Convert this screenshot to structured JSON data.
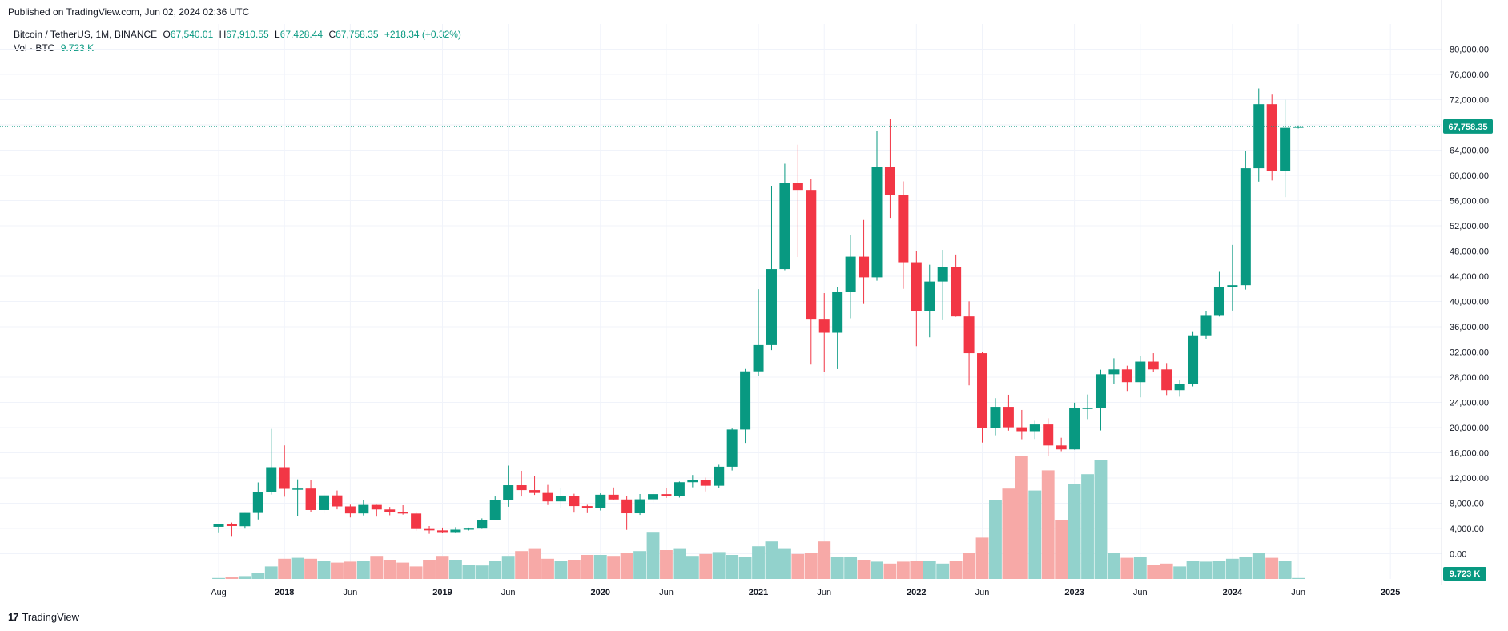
{
  "header": {
    "published": "Published on TradingView.com, Jun 02, 2024 02:36 UTC"
  },
  "legend": {
    "symbol": "Bitcoin / TetherUS, 1M, BINANCE",
    "o_label": "O",
    "o_value": "67,540.01",
    "h_label": "H",
    "h_value": "67,910.55",
    "l_label": "L",
    "l_value": "67,428.44",
    "c_label": "C",
    "c_value": "67,758.35",
    "change": "+218.34 (+0.32%)",
    "vol_label": "Vol · BTC",
    "vol_value": "9.723 K"
  },
  "price_tag": "67,758.35",
  "volume_tag": "9.723 K",
  "footer": {
    "brand": "TradingView",
    "logo_glyph": "17"
  },
  "colors": {
    "up": "#089981",
    "down": "#f23645",
    "up_vol": "#92d2cc",
    "down_vol": "#f7a9a7",
    "grid": "#f0f3fa"
  },
  "chart_data": {
    "type": "candlestick",
    "y_axis": {
      "ticks": [
        "80,000.00",
        "76,000.00",
        "72,000.00",
        "68,000.00",
        "64,000.00",
        "60,000.00",
        "56,000.00",
        "52,000.00",
        "48,000.00",
        "44,000.00",
        "40,000.00",
        "36,000.00",
        "32,000.00",
        "28,000.00",
        "24,000.00",
        "20,000.00",
        "16,000.00",
        "12,000.00",
        "8,000.00",
        "4,000.00",
        "0.00"
      ],
      "tick_values": [
        80000,
        76000,
        72000,
        68000,
        64000,
        60000,
        56000,
        52000,
        48000,
        44000,
        40000,
        36000,
        32000,
        28000,
        24000,
        20000,
        16000,
        12000,
        8000,
        4000,
        0
      ],
      "range": [
        -4000,
        84000
      ]
    },
    "x_axis": {
      "labels": [
        "Aug",
        "2018",
        "Jun",
        "2019",
        "Jun",
        "2020",
        "Jun",
        "2021",
        "Jun",
        "2022",
        "Jun",
        "2023",
        "Jun",
        "2024",
        "Jun",
        "2025"
      ],
      "label_months": [
        "2017-08",
        "2018-01",
        "2018-06",
        "2019-01",
        "2019-06",
        "2020-01",
        "2020-06",
        "2021-01",
        "2021-06",
        "2022-01",
        "2022-06",
        "2023-01",
        "2023-06",
        "2024-01",
        "2024-06",
        "2025-01"
      ]
    },
    "volume_label": "Vol · BTC",
    "last_close": 67758.35,
    "candles": [
      {
        "month": "2017-08",
        "o": 4261,
        "h": 4745,
        "l": 3400,
        "c": 4724,
        "v": 0.05
      },
      {
        "month": "2017-09",
        "o": 4690,
        "h": 4939,
        "l": 2817,
        "c": 4379,
        "v": 0.1
      },
      {
        "month": "2017-10",
        "o": 4353,
        "h": 6447,
        "l": 4098,
        "c": 6463,
        "v": 0.15
      },
      {
        "month": "2017-11",
        "o": 6463,
        "h": 11300,
        "l": 5426,
        "c": 9838,
        "v": 0.3
      },
      {
        "month": "2017-12",
        "o": 9838,
        "h": 19798,
        "l": 9380,
        "c": 13716,
        "v": 0.65
      },
      {
        "month": "2018-01",
        "o": 13716,
        "h": 17176,
        "l": 9035,
        "c": 10285,
        "v": 1.05
      },
      {
        "month": "2018-02",
        "o": 10285,
        "h": 11786,
        "l": 6000,
        "c": 10326,
        "v": 1.1
      },
      {
        "month": "2018-03",
        "o": 10326,
        "h": 11700,
        "l": 6600,
        "c": 6923,
        "v": 1.05
      },
      {
        "month": "2018-04",
        "o": 6923,
        "h": 9759,
        "l": 6425,
        "c": 9246,
        "v": 0.95
      },
      {
        "month": "2018-05",
        "o": 9246,
        "h": 10020,
        "l": 7032,
        "c": 7494,
        "v": 0.85
      },
      {
        "month": "2018-06",
        "o": 7494,
        "h": 7770,
        "l": 5750,
        "c": 6391,
        "v": 0.9
      },
      {
        "month": "2018-07",
        "o": 6391,
        "h": 8507,
        "l": 6070,
        "c": 7730,
        "v": 0.95
      },
      {
        "month": "2018-08",
        "o": 7730,
        "h": 7760,
        "l": 5880,
        "c": 7011,
        "v": 1.2
      },
      {
        "month": "2018-09",
        "o": 7011,
        "h": 7410,
        "l": 6100,
        "c": 6626,
        "v": 1.0
      },
      {
        "month": "2018-10",
        "o": 6626,
        "h": 7680,
        "l": 6200,
        "c": 6371,
        "v": 0.85
      },
      {
        "month": "2018-11",
        "o": 6371,
        "h": 6500,
        "l": 3652,
        "c": 4041,
        "v": 0.65
      },
      {
        "month": "2018-12",
        "o": 4041,
        "h": 4380,
        "l": 3156,
        "c": 3702,
        "v": 1.0
      },
      {
        "month": "2019-01",
        "o": 3702,
        "h": 4143,
        "l": 3349,
        "c": 3434,
        "v": 1.2
      },
      {
        "month": "2019-02",
        "o": 3434,
        "h": 4210,
        "l": 3373,
        "c": 3813,
        "v": 1.0
      },
      {
        "month": "2019-03",
        "o": 3813,
        "h": 4140,
        "l": 3689,
        "c": 4105,
        "v": 0.75
      },
      {
        "month": "2019-04",
        "o": 4105,
        "h": 5600,
        "l": 4050,
        "c": 5350,
        "v": 0.7
      },
      {
        "month": "2019-05",
        "o": 5350,
        "h": 9074,
        "l": 5330,
        "c": 8555,
        "v": 0.95
      },
      {
        "month": "2019-06",
        "o": 8555,
        "h": 13970,
        "l": 7440,
        "c": 10854,
        "v": 1.2
      },
      {
        "month": "2019-07",
        "o": 10854,
        "h": 13147,
        "l": 9071,
        "c": 10085,
        "v": 1.45
      },
      {
        "month": "2019-08",
        "o": 10085,
        "h": 12325,
        "l": 9320,
        "c": 9630,
        "v": 1.6
      },
      {
        "month": "2019-09",
        "o": 9630,
        "h": 10905,
        "l": 7710,
        "c": 8294,
        "v": 1.05
      },
      {
        "month": "2019-10",
        "o": 8294,
        "h": 10370,
        "l": 7300,
        "c": 9199,
        "v": 0.95
      },
      {
        "month": "2019-11",
        "o": 9199,
        "h": 9505,
        "l": 6515,
        "c": 7546,
        "v": 1.0
      },
      {
        "month": "2019-12",
        "o": 7546,
        "h": 7750,
        "l": 6435,
        "c": 7195,
        "v": 1.25
      },
      {
        "month": "2020-01",
        "o": 7195,
        "h": 9578,
        "l": 6850,
        "c": 9350,
        "v": 1.25
      },
      {
        "month": "2020-02",
        "o": 9350,
        "h": 10500,
        "l": 8450,
        "c": 8599,
        "v": 1.2
      },
      {
        "month": "2020-03",
        "o": 8599,
        "h": 9188,
        "l": 3782,
        "c": 6410,
        "v": 1.35
      },
      {
        "month": "2020-04",
        "o": 6410,
        "h": 9460,
        "l": 6150,
        "c": 8624,
        "v": 1.45
      },
      {
        "month": "2020-05",
        "o": 8624,
        "h": 10067,
        "l": 8117,
        "c": 9446,
        "v": 2.45
      },
      {
        "month": "2020-06",
        "o": 9446,
        "h": 10380,
        "l": 8833,
        "c": 9137,
        "v": 1.5
      },
      {
        "month": "2020-07",
        "o": 9137,
        "h": 11444,
        "l": 8893,
        "c": 11335,
        "v": 1.6
      },
      {
        "month": "2020-08",
        "o": 11335,
        "h": 12486,
        "l": 10525,
        "c": 11649,
        "v": 1.2
      },
      {
        "month": "2020-09",
        "o": 11649,
        "h": 12067,
        "l": 9875,
        "c": 10776,
        "v": 1.3
      },
      {
        "month": "2020-10",
        "o": 10776,
        "h": 14100,
        "l": 10375,
        "c": 13791,
        "v": 1.4
      },
      {
        "month": "2020-11",
        "o": 13791,
        "h": 19863,
        "l": 13195,
        "c": 19695,
        "v": 1.25
      },
      {
        "month": "2020-12",
        "o": 19695,
        "h": 29300,
        "l": 17572,
        "c": 28923,
        "v": 1.15
      },
      {
        "month": "2021-01",
        "o": 28923,
        "h": 41950,
        "l": 28130,
        "c": 33092,
        "v": 1.7
      },
      {
        "month": "2021-02",
        "o": 33092,
        "h": 58352,
        "l": 32296,
        "c": 45135,
        "v": 1.95
      },
      {
        "month": "2021-03",
        "o": 45135,
        "h": 61844,
        "l": 44950,
        "c": 58740,
        "v": 1.6
      },
      {
        "month": "2021-04",
        "o": 58740,
        "h": 64854,
        "l": 47044,
        "c": 57694,
        "v": 1.3
      },
      {
        "month": "2021-05",
        "o": 57694,
        "h": 59500,
        "l": 30000,
        "c": 37253,
        "v": 1.35
      },
      {
        "month": "2021-06",
        "o": 37253,
        "h": 41330,
        "l": 28805,
        "c": 35045,
        "v": 1.95
      },
      {
        "month": "2021-07",
        "o": 35045,
        "h": 42316,
        "l": 29278,
        "c": 41461,
        "v": 1.15
      },
      {
        "month": "2021-08",
        "o": 41461,
        "h": 50500,
        "l": 37332,
        "c": 47100,
        "v": 1.15
      },
      {
        "month": "2021-09",
        "o": 47100,
        "h": 52920,
        "l": 39600,
        "c": 43824,
        "v": 1.0
      },
      {
        "month": "2021-10",
        "o": 43824,
        "h": 67000,
        "l": 43283,
        "c": 61299,
        "v": 0.9
      },
      {
        "month": "2021-11",
        "o": 61299,
        "h": 69000,
        "l": 53256,
        "c": 56950,
        "v": 0.8
      },
      {
        "month": "2021-12",
        "o": 56950,
        "h": 59053,
        "l": 42000,
        "c": 46216,
        "v": 0.9
      },
      {
        "month": "2022-01",
        "o": 46216,
        "h": 47990,
        "l": 32917,
        "c": 38466,
        "v": 0.95
      },
      {
        "month": "2022-02",
        "o": 38466,
        "h": 45821,
        "l": 34322,
        "c": 43160,
        "v": 0.95
      },
      {
        "month": "2022-03",
        "o": 43160,
        "h": 48189,
        "l": 37155,
        "c": 45510,
        "v": 0.8
      },
      {
        "month": "2022-04",
        "o": 45510,
        "h": 47444,
        "l": 37578,
        "c": 37630,
        "v": 0.95
      },
      {
        "month": "2022-05",
        "o": 37630,
        "h": 40023,
        "l": 26700,
        "c": 31801,
        "v": 1.35
      },
      {
        "month": "2022-06",
        "o": 31801,
        "h": 31982,
        "l": 17622,
        "c": 19942,
        "v": 2.15
      },
      {
        "month": "2022-07",
        "o": 19942,
        "h": 24668,
        "l": 18781,
        "c": 23293,
        "v": 4.1
      },
      {
        "month": "2022-08",
        "o": 23293,
        "h": 25212,
        "l": 19520,
        "c": 20050,
        "v": 4.7
      },
      {
        "month": "2022-09",
        "o": 20050,
        "h": 22799,
        "l": 18153,
        "c": 19431,
        "v": 6.4
      },
      {
        "month": "2022-10",
        "o": 19431,
        "h": 21085,
        "l": 18190,
        "c": 20495,
        "v": 4.6
      },
      {
        "month": "2022-11",
        "o": 20495,
        "h": 21480,
        "l": 15476,
        "c": 17164,
        "v": 5.65
      },
      {
        "month": "2022-12",
        "o": 17164,
        "h": 18387,
        "l": 16256,
        "c": 16542,
        "v": 3.05
      },
      {
        "month": "2023-01",
        "o": 16542,
        "h": 23960,
        "l": 16499,
        "c": 23125,
        "v": 4.95
      },
      {
        "month": "2023-02",
        "o": 23125,
        "h": 25250,
        "l": 21351,
        "c": 23141,
        "v": 5.45
      },
      {
        "month": "2023-03",
        "o": 23141,
        "h": 29184,
        "l": 19549,
        "c": 28465,
        "v": 6.2
      },
      {
        "month": "2023-04",
        "o": 28465,
        "h": 31000,
        "l": 26942,
        "c": 29233,
        "v": 1.35
      },
      {
        "month": "2023-05",
        "o": 29233,
        "h": 29820,
        "l": 25811,
        "c": 27210,
        "v": 1.1
      },
      {
        "month": "2023-06",
        "o": 27210,
        "h": 31431,
        "l": 24800,
        "c": 30472,
        "v": 1.15
      },
      {
        "month": "2023-07",
        "o": 30472,
        "h": 31804,
        "l": 28861,
        "c": 29232,
        "v": 0.75
      },
      {
        "month": "2023-08",
        "o": 29232,
        "h": 30244,
        "l": 25166,
        "c": 25940,
        "v": 0.8
      },
      {
        "month": "2023-09",
        "o": 25940,
        "h": 27483,
        "l": 24901,
        "c": 26962,
        "v": 0.65
      },
      {
        "month": "2023-10",
        "o": 26962,
        "h": 35280,
        "l": 26538,
        "c": 34639,
        "v": 0.95
      },
      {
        "month": "2023-11",
        "o": 34639,
        "h": 38450,
        "l": 34098,
        "c": 37723,
        "v": 0.9
      },
      {
        "month": "2023-12",
        "o": 37723,
        "h": 44700,
        "l": 37615,
        "c": 42284,
        "v": 0.95
      },
      {
        "month": "2024-01",
        "o": 42284,
        "h": 48970,
        "l": 38555,
        "c": 42582,
        "v": 1.05
      },
      {
        "month": "2024-02",
        "o": 42582,
        "h": 63913,
        "l": 41884,
        "c": 61131,
        "v": 1.15
      },
      {
        "month": "2024-03",
        "o": 61131,
        "h": 73777,
        "l": 59005,
        "c": 71280,
        "v": 1.35
      },
      {
        "month": "2024-04",
        "o": 71280,
        "h": 72797,
        "l": 59191,
        "c": 60672,
        "v": 1.1
      },
      {
        "month": "2024-05",
        "o": 60672,
        "h": 71979,
        "l": 56552,
        "c": 67540,
        "v": 0.95
      },
      {
        "month": "2024-06",
        "o": 67540,
        "h": 67910,
        "l": 67428,
        "c": 67758,
        "v": 0.05
      }
    ]
  }
}
